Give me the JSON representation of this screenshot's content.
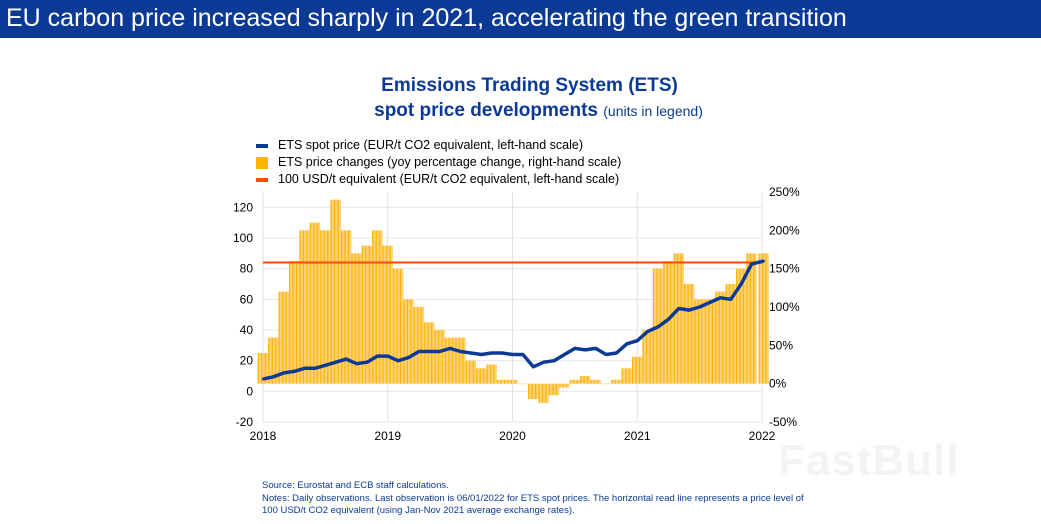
{
  "header": {
    "title": "EU carbon price increased sharply in 2021, accelerating the green transition"
  },
  "chart_data": {
    "type": "bar+line",
    "title": "Emissions Trading System (ETS)",
    "title2": "spot price developments",
    "title_note": "(units in legend)",
    "legend": [
      {
        "label": "ETS spot price (EUR/t CO2 equivalent, left-hand scale)",
        "color": "#0b3a96"
      },
      {
        "label": "ETS price changes (yoy percentage change, right-hand scale)",
        "color": "#ffb400"
      },
      {
        "label": "100 USD/t equivalent (EUR/t CO2 equivalent, left-hand scale)",
        "color": "#ff4b00"
      }
    ],
    "x_ticks": [
      "2018",
      "2019",
      "2020",
      "2021",
      "2022"
    ],
    "left_ticks": [
      120,
      100,
      80,
      60,
      40,
      20,
      0,
      -20
    ],
    "right_ticks": [
      "250%",
      "200%",
      "150%",
      "100%",
      "50%",
      "0%",
      "-50%"
    ],
    "ylim_left": [
      -20,
      130
    ],
    "ylim_right": [
      -50,
      250
    ],
    "grid": true,
    "legend_placement": "top",
    "dates": [
      "2018-01",
      "2018-02",
      "2018-03",
      "2018-04",
      "2018-05",
      "2018-06",
      "2018-07",
      "2018-08",
      "2018-09",
      "2018-10",
      "2018-11",
      "2018-12",
      "2019-01",
      "2019-02",
      "2019-03",
      "2019-04",
      "2019-05",
      "2019-06",
      "2019-07",
      "2019-08",
      "2019-09",
      "2019-10",
      "2019-11",
      "2019-12",
      "2020-01",
      "2020-02",
      "2020-03",
      "2020-04",
      "2020-05",
      "2020-06",
      "2020-07",
      "2020-08",
      "2020-09",
      "2020-10",
      "2020-11",
      "2020-12",
      "2021-01",
      "2021-02",
      "2021-03",
      "2021-04",
      "2021-05",
      "2021-06",
      "2021-07",
      "2021-08",
      "2021-09",
      "2021-10",
      "2021-11",
      "2021-12",
      "2022-01-06"
    ],
    "spot_price": [
      8,
      9.5,
      12,
      13,
      15,
      15,
      17,
      19,
      21,
      18,
      19,
      23,
      23,
      20,
      22,
      26,
      26,
      26,
      28,
      26,
      25,
      24,
      25,
      25,
      24,
      24,
      16,
      19,
      20,
      24,
      28,
      27,
      28,
      24,
      25,
      31,
      33,
      39,
      42,
      47,
      54,
      53,
      55,
      58,
      61,
      60,
      70,
      83,
      85
    ],
    "yoy_change": [
      40,
      60,
      120,
      160,
      200,
      210,
      200,
      240,
      200,
      170,
      180,
      200,
      180,
      150,
      110,
      100,
      80,
      70,
      60,
      60,
      30,
      20,
      25,
      5,
      5,
      0,
      -20,
      -25,
      -15,
      -5,
      5,
      10,
      5,
      0,
      5,
      20,
      35,
      70,
      150,
      160,
      170,
      130,
      110,
      110,
      120,
      130,
      150,
      170,
      170
    ],
    "usd100_equivalent": 84
  },
  "notes": {
    "source": "Source: Eurostat and ECB staff calculations.",
    "line1": "Notes: Daily observations. Last observation is 06/01/2022 for ETS spot prices. The horizontal read line represents a price level of",
    "line2": "100 USD/t CO2 equivalent (using Jan-Nov 2021 average exchange rates)."
  },
  "watermark": "FastBull"
}
